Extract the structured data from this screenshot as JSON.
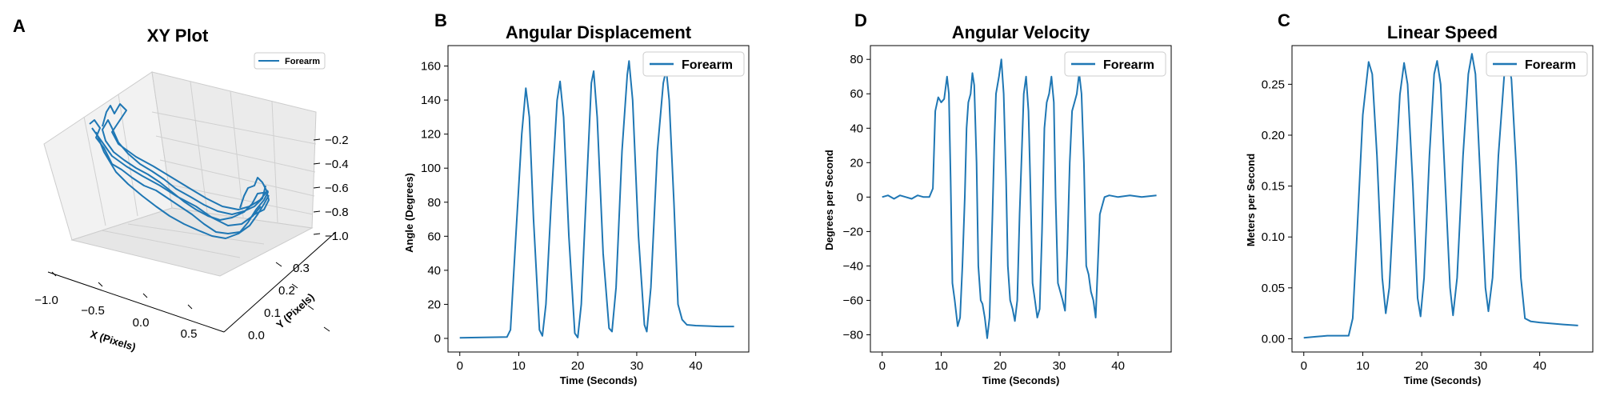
{
  "figure": {
    "panels": [
      {
        "letter": "A",
        "title": "XY Plot"
      },
      {
        "letter": "B",
        "title": "Angular Displacement"
      },
      {
        "letter": "D",
        "title": "Angular Velocity"
      },
      {
        "letter": "C",
        "title": "Linear Speed"
      }
    ]
  },
  "chart_data": [
    {
      "type": "line3d",
      "title": "XY Plot",
      "xlabel": "X (Pixels)",
      "ylabel": "Y (Pixels)",
      "zlabel": "",
      "x_ticks": [
        "−1.0",
        "−0.5",
        "0.0",
        "0.5"
      ],
      "y_ticks": [
        "0.0",
        "0.1",
        "0.2",
        "0.3"
      ],
      "z_ticks": [
        "−0.2",
        "−0.4",
        "−0.6",
        "−0.8",
        "−1.0"
      ],
      "xlim": [
        -1.1,
        0.7
      ],
      "ylim": [
        -0.03,
        0.33
      ],
      "zlim": [
        -1.0,
        -0.1
      ],
      "legend": {
        "position": "upper right",
        "entries": [
          "Forearm"
        ]
      },
      "series": [
        {
          "name": "Forearm",
          "description_points": [
            [
              -0.9,
              0.02,
              -0.25
            ],
            [
              -0.6,
              0.05,
              -0.45
            ],
            [
              -0.3,
              0.1,
              -0.65
            ],
            [
              0.0,
              0.15,
              -0.85
            ],
            [
              0.3,
              0.2,
              -0.9
            ],
            [
              0.55,
              0.25,
              -0.75
            ]
          ]
        }
      ]
    },
    {
      "type": "line",
      "title": "Angular Displacement",
      "xlabel": "Time (Seconds)",
      "ylabel": "Angle (Degrees)",
      "xlim": [
        -2,
        49
      ],
      "ylim": [
        -8,
        172
      ],
      "x_ticks": [
        0,
        10,
        20,
        30,
        40
      ],
      "y_ticks": [
        0,
        20,
        40,
        60,
        80,
        100,
        120,
        140,
        160
      ],
      "legend": {
        "position": "upper right",
        "entries": [
          "Forearm"
        ]
      },
      "series": [
        {
          "name": "Forearm",
          "points": [
            [
              0,
              0.3
            ],
            [
              4,
              0.6
            ],
            [
              8,
              0.8
            ],
            [
              8.6,
              5
            ],
            [
              9.5,
              60
            ],
            [
              10.5,
              120
            ],
            [
              11.2,
              147
            ],
            [
              11.8,
              130
            ],
            [
              12.5,
              70
            ],
            [
              13.5,
              5
            ],
            [
              14,
              1.5
            ],
            [
              14.6,
              20
            ],
            [
              15.5,
              80
            ],
            [
              16.5,
              140
            ],
            [
              17,
              151
            ],
            [
              17.6,
              130
            ],
            [
              18.5,
              60
            ],
            [
              19.5,
              3
            ],
            [
              20,
              0.5
            ],
            [
              20.6,
              20
            ],
            [
              21.5,
              90
            ],
            [
              22.3,
              150
            ],
            [
              22.7,
              157
            ],
            [
              23.3,
              130
            ],
            [
              24.3,
              50
            ],
            [
              25.3,
              6
            ],
            [
              25.8,
              4
            ],
            [
              26.5,
              30
            ],
            [
              27.5,
              110
            ],
            [
              28.4,
              155
            ],
            [
              28.7,
              163
            ],
            [
              29.3,
              140
            ],
            [
              30.3,
              60
            ],
            [
              31.3,
              8
            ],
            [
              31.7,
              4
            ],
            [
              32.4,
              30
            ],
            [
              33.5,
              110
            ],
            [
              34.5,
              150
            ],
            [
              35,
              158
            ],
            [
              35.5,
              140
            ],
            [
              36.3,
              80
            ],
            [
              37,
              20
            ],
            [
              37.7,
              11
            ],
            [
              38.5,
              8
            ],
            [
              40,
              7.5
            ],
            [
              44,
              7
            ],
            [
              46.5,
              7
            ]
          ]
        }
      ]
    },
    {
      "type": "line",
      "title": "Angular Velocity",
      "xlabel": "Time (Seconds)",
      "ylabel": "Degrees per Second",
      "xlim": [
        -2,
        49
      ],
      "ylim": [
        -90,
        88
      ],
      "x_ticks": [
        0,
        10,
        20,
        30,
        40
      ],
      "y_ticks": [
        -80,
        -60,
        -40,
        -20,
        0,
        20,
        40,
        60,
        80
      ],
      "legend": {
        "position": "upper right",
        "entries": [
          "Forearm"
        ]
      },
      "series": [
        {
          "name": "Forearm",
          "points": [
            [
              0,
              0
            ],
            [
              1,
              1
            ],
            [
              2,
              -1
            ],
            [
              3,
              1
            ],
            [
              4,
              0
            ],
            [
              5,
              -1
            ],
            [
              6,
              1
            ],
            [
              7,
              0
            ],
            [
              8,
              0
            ],
            [
              8.6,
              5
            ],
            [
              9,
              50
            ],
            [
              9.5,
              58
            ],
            [
              10,
              55
            ],
            [
              10.5,
              57
            ],
            [
              11,
              70
            ],
            [
              11.3,
              60
            ],
            [
              11.6,
              10
            ],
            [
              11.9,
              -50
            ],
            [
              12.3,
              -60
            ],
            [
              12.8,
              -75
            ],
            [
              13.2,
              -70
            ],
            [
              13.6,
              -40
            ],
            [
              14,
              0
            ],
            [
              14.3,
              40
            ],
            [
              14.6,
              55
            ],
            [
              15,
              60
            ],
            [
              15.3,
              72
            ],
            [
              15.6,
              65
            ],
            [
              16,
              20
            ],
            [
              16.3,
              -40
            ],
            [
              16.7,
              -60
            ],
            [
              17,
              -62
            ],
            [
              17.4,
              -70
            ],
            [
              17.8,
              -82
            ],
            [
              18.2,
              -70
            ],
            [
              18.7,
              -10
            ],
            [
              19,
              30
            ],
            [
              19.3,
              60
            ],
            [
              19.8,
              70
            ],
            [
              20.2,
              80
            ],
            [
              20.6,
              60
            ],
            [
              21,
              10
            ],
            [
              21.3,
              -40
            ],
            [
              21.7,
              -60
            ],
            [
              22.1,
              -65
            ],
            [
              22.5,
              -72
            ],
            [
              22.9,
              -60
            ],
            [
              23.3,
              -10
            ],
            [
              23.7,
              30
            ],
            [
              24,
              60
            ],
            [
              24.4,
              70
            ],
            [
              24.8,
              50
            ],
            [
              25.1,
              10
            ],
            [
              25.5,
              -50
            ],
            [
              25.9,
              -60
            ],
            [
              26.3,
              -70
            ],
            [
              26.7,
              -65
            ],
            [
              27.1,
              -20
            ],
            [
              27.5,
              40
            ],
            [
              27.9,
              55
            ],
            [
              28.3,
              60
            ],
            [
              28.7,
              70
            ],
            [
              29.1,
              55
            ],
            [
              29.4,
              0
            ],
            [
              29.8,
              -50
            ],
            [
              30.2,
              -55
            ],
            [
              30.6,
              -60
            ],
            [
              31,
              -66
            ],
            [
              31.4,
              -30
            ],
            [
              31.8,
              20
            ],
            [
              32.2,
              50
            ],
            [
              32.6,
              55
            ],
            [
              33,
              60
            ],
            [
              33.4,
              72
            ],
            [
              33.8,
              60
            ],
            [
              34.2,
              20
            ],
            [
              34.6,
              -40
            ],
            [
              35,
              -45
            ],
            [
              35.4,
              -55
            ],
            [
              35.8,
              -60
            ],
            [
              36.2,
              -70
            ],
            [
              36.5,
              -45
            ],
            [
              36.9,
              -10
            ],
            [
              37.3,
              -5
            ],
            [
              37.7,
              0
            ],
            [
              38.5,
              1
            ],
            [
              40,
              0
            ],
            [
              42,
              1
            ],
            [
              44,
              0
            ],
            [
              46.5,
              1
            ]
          ]
        }
      ]
    },
    {
      "type": "line",
      "title": "Linear Speed",
      "xlabel": "Time (Seconds)",
      "ylabel": "Meters per Second",
      "xlim": [
        -2,
        49
      ],
      "ylim": [
        -0.013,
        0.288
      ],
      "x_ticks": [
        0,
        10,
        20,
        30,
        40
      ],
      "y_ticks": [
        0.0,
        0.05,
        0.1,
        0.15,
        0.2,
        0.25
      ],
      "y_tick_labels": [
        "0.00",
        "0.05",
        "0.10",
        "0.15",
        "0.20",
        "0.25"
      ],
      "legend": {
        "position": "upper right",
        "entries": [
          "Forearm"
        ]
      },
      "series": [
        {
          "name": "Forearm",
          "points": [
            [
              0,
              0.001
            ],
            [
              2,
              0.002
            ],
            [
              4,
              0.003
            ],
            [
              6,
              0.003
            ],
            [
              7.6,
              0.003
            ],
            [
              8.3,
              0.02
            ],
            [
              9,
              0.1
            ],
            [
              10,
              0.22
            ],
            [
              11,
              0.272
            ],
            [
              11.6,
              0.26
            ],
            [
              12.4,
              0.18
            ],
            [
              13.3,
              0.06
            ],
            [
              13.9,
              0.025
            ],
            [
              14.5,
              0.05
            ],
            [
              15.4,
              0.15
            ],
            [
              16.3,
              0.24
            ],
            [
              17,
              0.271
            ],
            [
              17.6,
              0.25
            ],
            [
              18.5,
              0.15
            ],
            [
              19.3,
              0.04
            ],
            [
              19.8,
              0.022
            ],
            [
              20.4,
              0.06
            ],
            [
              21.3,
              0.18
            ],
            [
              22.1,
              0.26
            ],
            [
              22.6,
              0.273
            ],
            [
              23.2,
              0.25
            ],
            [
              24,
              0.15
            ],
            [
              24.8,
              0.05
            ],
            [
              25.3,
              0.023
            ],
            [
              26,
              0.06
            ],
            [
              27,
              0.18
            ],
            [
              27.9,
              0.26
            ],
            [
              28.5,
              0.28
            ],
            [
              29.1,
              0.26
            ],
            [
              30,
              0.15
            ],
            [
              30.8,
              0.05
            ],
            [
              31.3,
              0.027
            ],
            [
              32,
              0.06
            ],
            [
              33,
              0.18
            ],
            [
              34,
              0.26
            ],
            [
              34.6,
              0.275
            ],
            [
              35.2,
              0.255
            ],
            [
              36,
              0.17
            ],
            [
              36.8,
              0.06
            ],
            [
              37.5,
              0.02
            ],
            [
              38.5,
              0.017
            ],
            [
              40,
              0.016
            ],
            [
              42,
              0.015
            ],
            [
              44,
              0.014
            ],
            [
              46.5,
              0.013
            ]
          ]
        }
      ]
    }
  ]
}
